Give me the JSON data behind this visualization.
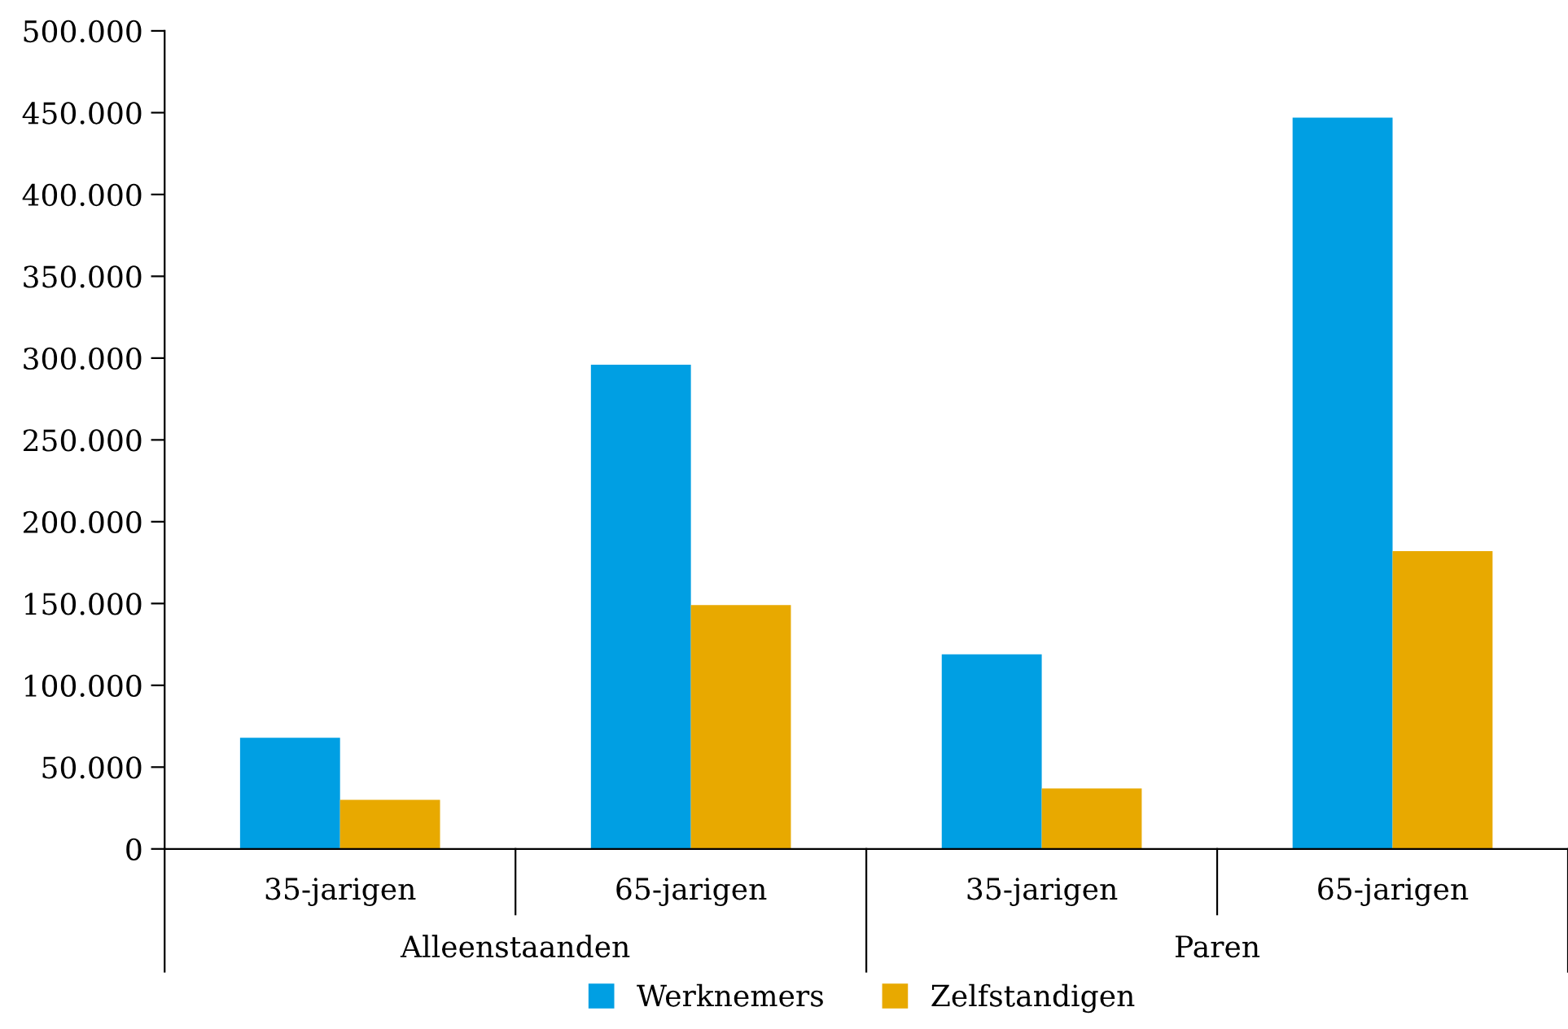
{
  "chart_data": {
    "type": "bar",
    "categories": [
      "35-jarigen",
      "65-jarigen",
      "35-jarigen",
      "65-jarigen"
    ],
    "series": [
      {
        "name": "Werknemers",
        "color": "#009fe3",
        "values": [
          68000,
          296000,
          119000,
          447000
        ]
      },
      {
        "name": "Zelfstandigen",
        "color": "#e8a900",
        "values": [
          30000,
          149000,
          37000,
          182000
        ]
      }
    ],
    "annotations": [
      "Alleenstaanden",
      "Paren"
    ],
    "ylim": [
      0,
      500000
    ],
    "yticks": [
      0,
      {
        "value": 50000,
        "label": "50.000"
      },
      {
        "value": 100000,
        "label": "100.000"
      },
      {
        "value": 150000,
        "label": "150.000"
      },
      {
        "value": 200000,
        "label": "200.000"
      },
      {
        "value": 250000,
        "label": "250.000"
      },
      {
        "value": 300000,
        "label": "300.000"
      },
      {
        "value": 350000,
        "label": "350.000"
      },
      {
        "value": 400000,
        "label": "400.000"
      },
      {
        "value": 450000,
        "label": "450.000"
      },
      {
        "value": 500000,
        "label": "500.000"
      }
    ],
    "grid": false,
    "legend": "bottom"
  }
}
